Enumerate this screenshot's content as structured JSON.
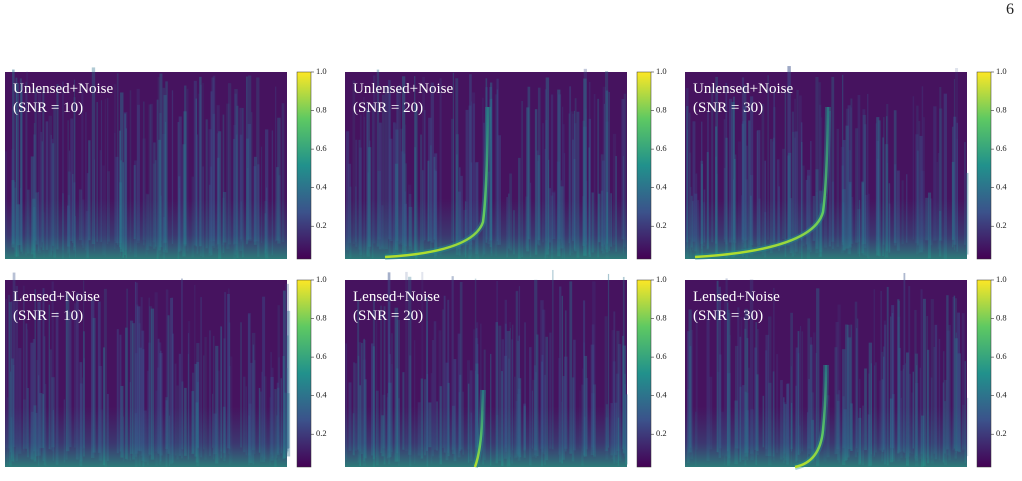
{
  "page_number": "6",
  "colorbar": {
    "lim": [
      0.03,
      1.0
    ],
    "ticks": [
      0.2,
      0.4,
      0.6,
      0.8,
      {
        "value": 1.0,
        "label": "1.0"
      }
    ]
  },
  "panels": [
    {
      "label": "Unlensed+Noise",
      "snr": "(SNR = 10)"
    },
    {
      "label": "Unlensed+Noise",
      "snr": "(SNR = 20)"
    },
    {
      "label": "Unlensed+Noise",
      "snr": "(SNR = 30)"
    },
    {
      "label": "Lensed+Noise",
      "snr": "(SNR = 10)"
    },
    {
      "label": "Lensed+Noise",
      "snr": "(SNR = 20)"
    },
    {
      "label": "Lensed+Noise",
      "snr": "(SNR = 30)"
    }
  ]
}
